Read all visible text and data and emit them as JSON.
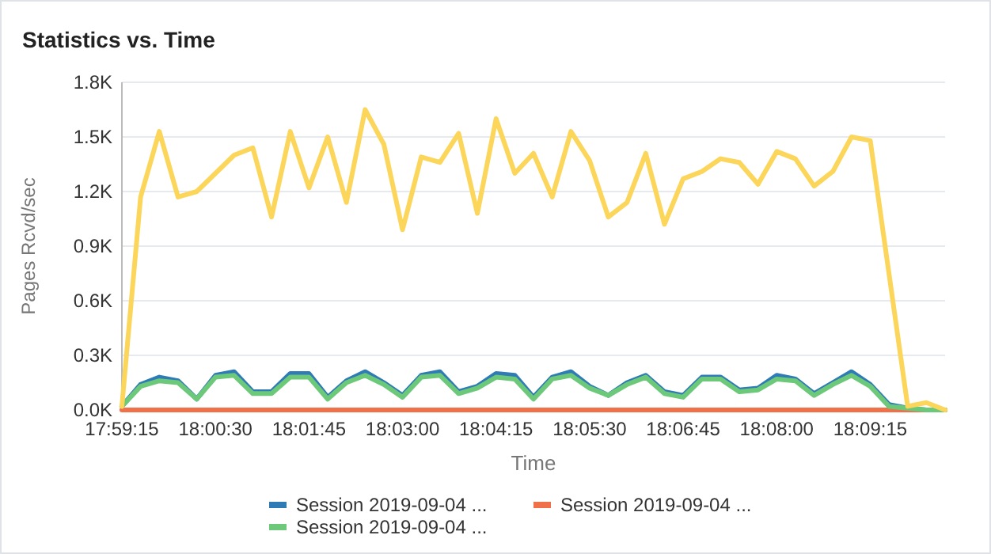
{
  "chart_data": {
    "type": "line",
    "title": "Statistics vs. Time",
    "xlabel": "Time",
    "ylabel": "Pages Rcvd/sec",
    "categories": [
      "17:59:15",
      null,
      null,
      null,
      null,
      "18:00:30",
      null,
      null,
      null,
      null,
      "18:01:45",
      null,
      null,
      null,
      null,
      "18:03:00",
      null,
      null,
      null,
      null,
      "18:04:15",
      null,
      null,
      null,
      null,
      "18:05:30",
      null,
      null,
      null,
      null,
      "18:06:45",
      null,
      null,
      null,
      null,
      "18:08:00",
      null,
      null,
      null,
      null,
      "18:09:15",
      null,
      null,
      null,
      null
    ],
    "series": [
      {
        "name": "Session 2019-09-04 ...",
        "color": "#2e7bb5",
        "values": [
          20,
          140,
          180,
          160,
          60,
          190,
          210,
          100,
          100,
          200,
          200,
          70,
          160,
          210,
          150,
          80,
          190,
          210,
          100,
          130,
          200,
          190,
          70,
          180,
          210,
          130,
          80,
          150,
          190,
          100,
          80,
          180,
          180,
          110,
          120,
          190,
          170,
          90,
          150,
          210,
          140,
          30,
          10,
          0,
          0
        ]
      },
      {
        "name": "Session 2019-09-04 ...",
        "color": "#f0704a",
        "values": [
          0,
          0,
          0,
          0,
          0,
          0,
          0,
          0,
          0,
          0,
          0,
          0,
          0,
          0,
          0,
          0,
          0,
          0,
          0,
          0,
          0,
          0,
          0,
          0,
          0,
          0,
          0,
          0,
          0,
          0,
          0,
          0,
          0,
          0,
          0,
          0,
          0,
          0,
          0,
          0,
          0,
          0,
          0,
          0,
          0
        ]
      },
      {
        "name": "Session 2019-09-04 ...",
        "color": "#6cc97a",
        "values": [
          20,
          130,
          160,
          150,
          60,
          180,
          190,
          90,
          90,
          180,
          180,
          60,
          150,
          190,
          140,
          70,
          180,
          190,
          90,
          120,
          180,
          170,
          60,
          170,
          190,
          120,
          80,
          140,
          180,
          90,
          70,
          170,
          170,
          100,
          110,
          170,
          160,
          80,
          140,
          190,
          130,
          20,
          10,
          0,
          0
        ]
      },
      {
        "color": "#fcd65a",
        "values": [
          20,
          1170,
          1530,
          1170,
          1200,
          1300,
          1400,
          1440,
          1060,
          1530,
          1220,
          1500,
          1140,
          1650,
          1460,
          990,
          1390,
          1360,
          1520,
          1080,
          1600,
          1300,
          1410,
          1170,
          1530,
          1370,
          1060,
          1140,
          1410,
          1020,
          1270,
          1310,
          1380,
          1360,
          1240,
          1420,
          1380,
          1230,
          1310,
          1500,
          1480,
          750,
          20,
          40,
          0
        ]
      }
    ],
    "ylim": [
      0,
      1800
    ],
    "yticks": [
      {
        "value": 0,
        "label": "0.0K"
      },
      {
        "value": 300,
        "label": "0.3K"
      },
      {
        "value": 600,
        "label": "0.6K"
      },
      {
        "value": 900,
        "label": "0.9K"
      },
      {
        "value": 1200,
        "label": "1.2K"
      },
      {
        "value": 1500,
        "label": "1.5K"
      },
      {
        "value": 1800,
        "label": "1.8K"
      }
    ],
    "grid": "y",
    "legend": "bottom",
    "marker": "none",
    "line_style": "solid"
  }
}
